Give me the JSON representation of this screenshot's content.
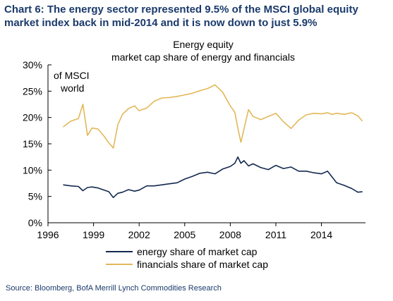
{
  "heading": "Chart 6: The energy sector represented 9.5% of the MSCI global equity market index back in mid-2014 and it is now down to just 5.9%",
  "source": "Source: Bloomberg, BofA Merrill Lynch Commodities Research",
  "colors": {
    "energy": "#14294f",
    "financials": "#e2b85a",
    "heading": "#1a3a6b",
    "axis": "#000000"
  },
  "chart_data": {
    "type": "line",
    "title": "Energy equity",
    "subtitle": "market cap share of energy and financials",
    "ylabel": "of MSCI world",
    "ylabel_lines": [
      "of MSCI",
      "world"
    ],
    "xlabel": "",
    "xlim": [
      1996,
      2016.9
    ],
    "ylim": [
      0,
      30
    ],
    "x_ticks": [
      1996,
      1999,
      2002,
      2005,
      2008,
      2011,
      2014
    ],
    "y_ticks": [
      0,
      5,
      10,
      15,
      20,
      25,
      30
    ],
    "y_tick_labels": [
      "0%",
      "5%",
      "10%",
      "15%",
      "20%",
      "25%",
      "30%"
    ],
    "grid": false,
    "legend_position": "bottom",
    "series": [
      {
        "name": "energy share of market cap",
        "color": "#14294f",
        "x": [
          1997.0,
          1997.5,
          1998.0,
          1998.3,
          1998.6,
          1998.9,
          1999.3,
          1999.7,
          2000.0,
          2000.3,
          2000.6,
          2000.9,
          2001.3,
          2001.7,
          2002.0,
          2002.5,
          2003.0,
          2003.5,
          2004.0,
          2004.5,
          2005.0,
          2005.5,
          2006.0,
          2006.5,
          2007.0,
          2007.5,
          2008.0,
          2008.3,
          2008.5,
          2008.7,
          2008.9,
          2009.2,
          2009.5,
          2010.0,
          2010.5,
          2011.0,
          2011.5,
          2012.0,
          2012.5,
          2013.0,
          2013.5,
          2014.0,
          2014.4,
          2014.7,
          2015.0,
          2015.5,
          2016.0,
          2016.4,
          2016.7
        ],
        "y": [
          7.2,
          7.0,
          6.9,
          6.1,
          6.7,
          6.8,
          6.6,
          6.2,
          5.9,
          4.8,
          5.6,
          5.8,
          6.3,
          6.0,
          6.2,
          7.0,
          7.0,
          7.2,
          7.4,
          7.6,
          8.3,
          8.8,
          9.4,
          9.6,
          9.3,
          10.2,
          10.7,
          11.3,
          12.5,
          11.3,
          11.8,
          10.8,
          11.2,
          10.5,
          10.1,
          10.9,
          10.3,
          10.6,
          9.8,
          9.8,
          9.5,
          9.3,
          9.8,
          8.7,
          7.6,
          7.1,
          6.5,
          5.8,
          5.9
        ]
      },
      {
        "name": "financials share of market cap",
        "color": "#e2b85a",
        "x": [
          1997.0,
          1997.5,
          1998.0,
          1998.3,
          1998.6,
          1998.9,
          1999.3,
          1999.7,
          2000.0,
          2000.3,
          2000.6,
          2000.9,
          2001.3,
          2001.7,
          2002.0,
          2002.5,
          2003.0,
          2003.5,
          2004.0,
          2004.5,
          2005.0,
          2005.5,
          2006.0,
          2006.5,
          2007.0,
          2007.5,
          2008.0,
          2008.3,
          2008.5,
          2008.7,
          2008.9,
          2009.2,
          2009.5,
          2010.0,
          2010.5,
          2011.0,
          2011.5,
          2012.0,
          2012.5,
          2013.0,
          2013.5,
          2014.0,
          2014.4,
          2014.7,
          2015.0,
          2015.5,
          2016.0,
          2016.4,
          2016.7
        ],
        "y": [
          18.2,
          19.3,
          19.8,
          22.5,
          16.6,
          18.0,
          17.8,
          16.4,
          15.2,
          14.2,
          18.6,
          20.6,
          21.7,
          22.2,
          21.3,
          21.8,
          23.1,
          23.7,
          23.8,
          24.0,
          24.3,
          24.6,
          25.1,
          25.5,
          26.2,
          24.8,
          22.2,
          21.0,
          18.0,
          15.3,
          17.8,
          21.5,
          20.2,
          19.6,
          20.2,
          20.8,
          19.2,
          17.9,
          19.5,
          20.5,
          20.8,
          20.7,
          20.9,
          20.6,
          20.8,
          20.6,
          20.9,
          20.3,
          19.3
        ]
      }
    ]
  }
}
